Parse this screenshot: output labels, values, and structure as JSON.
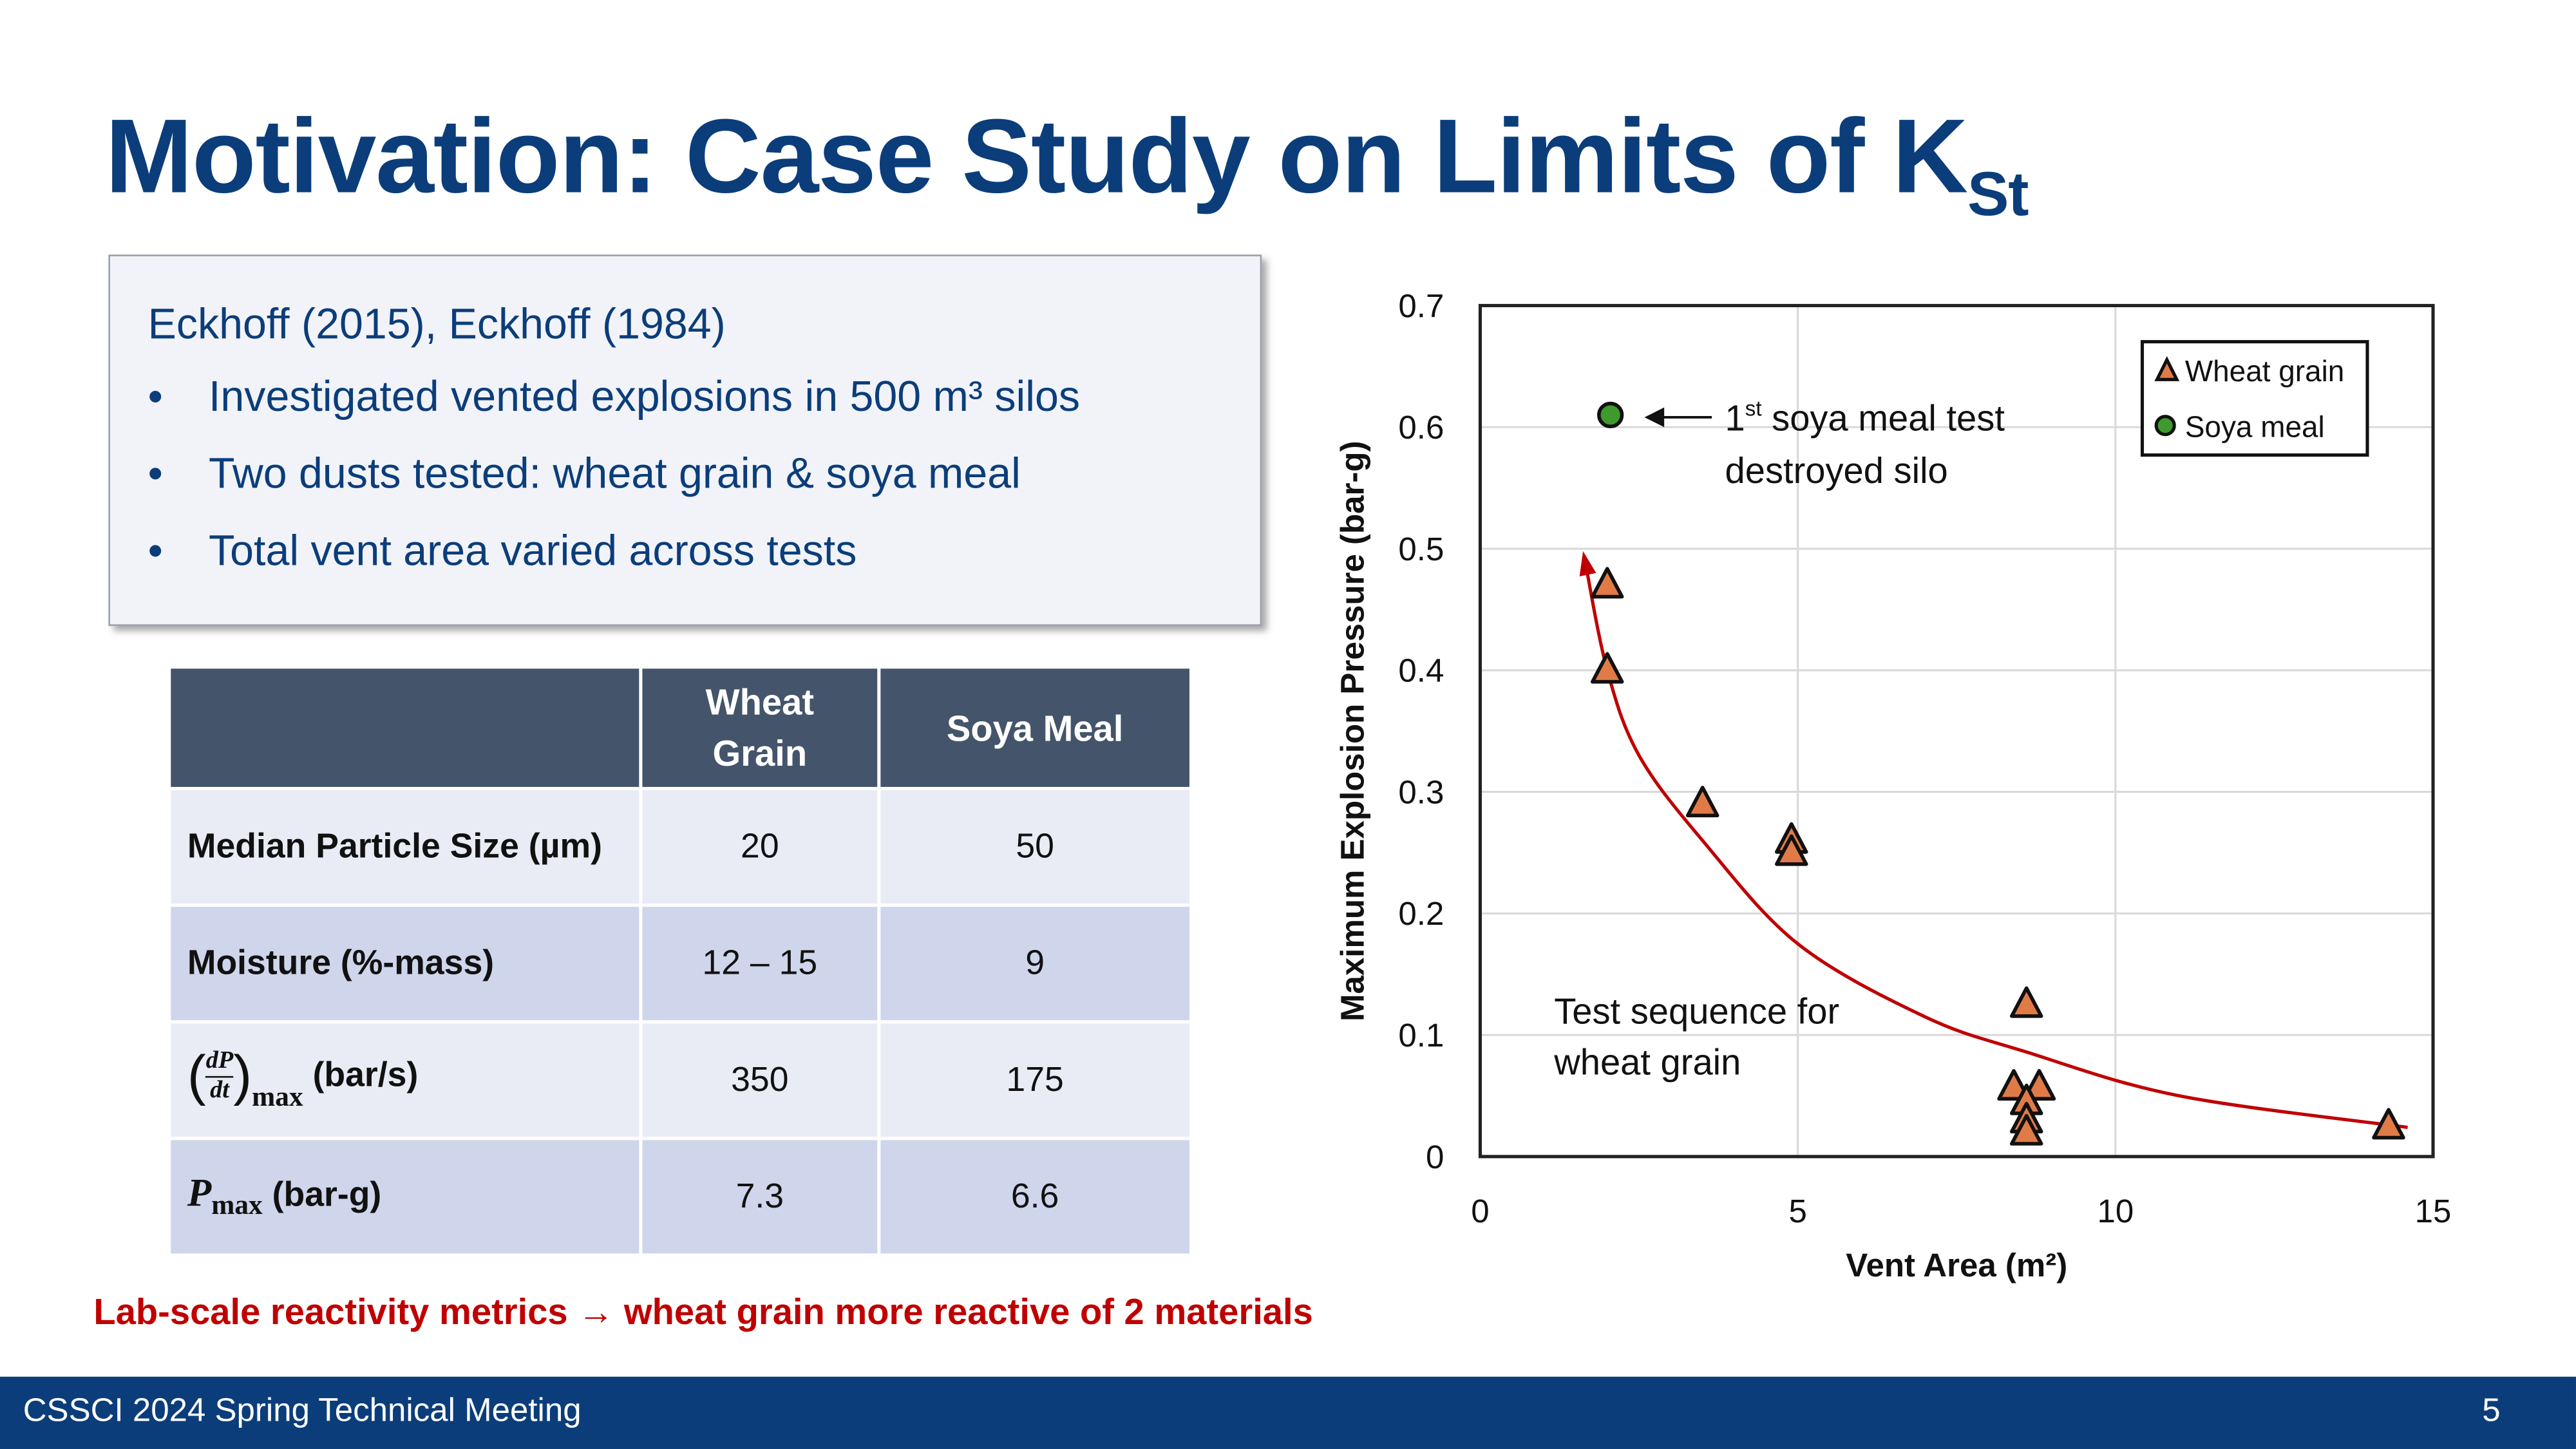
{
  "slide": {
    "title_main": "Motivation: Case Study on Limits of K",
    "title_sub": "St",
    "page_number": "5",
    "footer_text": "CSSCI 2024 Spring Technical Meeting",
    "accent": "#0b3d7a"
  },
  "textbox": {
    "reference": "Eckhoff (2015), Eckhoff (1984)",
    "bullets": [
      "Investigated vented explosions in 500 m³ silos",
      "Two dusts tested: wheat grain & soya meal",
      "Total vent area varied across tests"
    ]
  },
  "table": {
    "headers": [
      "",
      "Wheat Grain",
      "Soya Meal"
    ],
    "rows": [
      {
        "label": "Median Particle Size (µm)",
        "wheat": "20",
        "soya": "50"
      },
      {
        "label": "Moisture (%-mass)",
        "wheat": "12 – 15",
        "soya": "9"
      },
      {
        "label_num": "dP",
        "label_den": "dt",
        "label_subscript": "max",
        "label_unit": "(bar/s)",
        "wheat": "350",
        "soya": "175"
      },
      {
        "label_sym": "P",
        "label_subscript": "max",
        "label_unit": "(bar-g)",
        "wheat": "7.3",
        "soya": "6.6"
      }
    ]
  },
  "conclusion": "Lab-scale reactivity metrics → wheat grain more reactive of 2 materials",
  "chart_data": {
    "type": "scatter",
    "xlabel": "Vent Area (m²)",
    "ylabel": "Maximum Explosion Pressure (bar-g)",
    "xlim": [
      0,
      15
    ],
    "ylim": [
      0,
      0.7
    ],
    "x_ticks": [
      "0",
      "5",
      "10",
      "15"
    ],
    "y_ticks": [
      "0",
      "0.1",
      "0.2",
      "0.3",
      "0.4",
      "0.5",
      "0.6",
      "0.7"
    ],
    "grid": true,
    "legend_position": "top-right",
    "series": [
      {
        "name": "Wheat grain",
        "marker": "triangle",
        "color": "#e07b48",
        "x": [
          2.0,
          2.0,
          3.5,
          4.9,
          4.9,
          8.6,
          8.4,
          8.8,
          8.6,
          8.6,
          8.6,
          14.3
        ],
        "y": [
          0.47,
          0.4,
          0.29,
          0.26,
          0.25,
          0.125,
          0.057,
          0.057,
          0.045,
          0.03,
          0.02,
          0.025
        ]
      },
      {
        "name": "Soya meal",
        "marker": "circle",
        "color": "#3f9a2e",
        "x": [
          2.05
        ],
        "y": [
          0.61
        ]
      }
    ],
    "trend_curve": {
      "color": "#c00000",
      "x": [
        1.65,
        2.0,
        2.5,
        3.5,
        5.0,
        7.0,
        8.6,
        11.0,
        14.6
      ],
      "y": [
        0.49,
        0.4,
        0.33,
        0.26,
        0.175,
        0.115,
        0.086,
        0.05,
        0.024
      ]
    },
    "annotations": {
      "soya_prefix": "1",
      "soya_sup": "st",
      "soya_line1_rest": " soya meal test",
      "soya_line2": "destroyed silo",
      "wheat_line1": "Test sequence for",
      "wheat_line2": "wheat grain"
    }
  }
}
